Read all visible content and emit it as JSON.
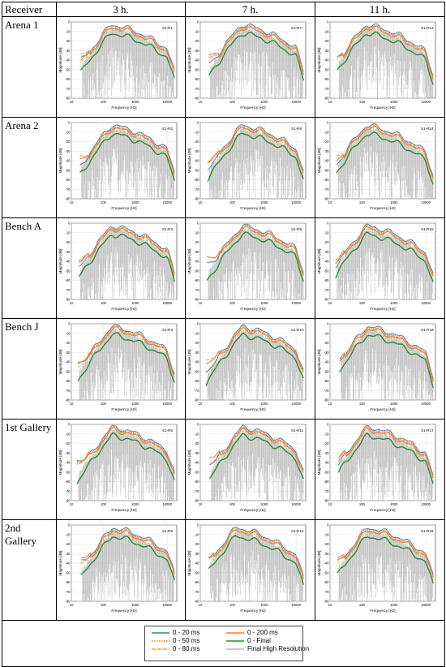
{
  "header": {
    "receiver": "Receiver",
    "t3": "3 h.",
    "t7": "7 h.",
    "t11": "11 h."
  },
  "axis": {
    "xlabel": "Frequency [Hz]",
    "ylabel": "Magnitude [dB]",
    "xticks": [
      "10",
      "100",
      "1000",
      "10000"
    ],
    "yticks": [
      "0",
      "-10",
      "-20",
      "-30",
      "-40",
      "-50",
      "-60",
      "-70",
      "-80"
    ]
  },
  "rows": [
    {
      "label": "Arena 1",
      "plots": [
        "S1-R1",
        "S1-R7",
        "S1-R13"
      ]
    },
    {
      "label": "Arena 2",
      "plots": [
        "S1-R2",
        "S1-R8",
        "S1-R14"
      ]
    },
    {
      "label": "Bench A",
      "plots": [
        "S1-R3",
        "S1-R9",
        "S1-R15"
      ]
    },
    {
      "label": "Bench J",
      "plots": [
        "S1-R4",
        "S1-R10",
        "S1-R16"
      ]
    },
    {
      "label": "1st Gallery",
      "plots": [
        "S1-R5",
        "S1-R11",
        "S1-R17"
      ]
    },
    {
      "label": "2nd Gallery",
      "plots": [
        "S1-R6",
        "S1-R12",
        "S1-R18"
      ]
    }
  ],
  "legend": [
    {
      "label": "0 - 20 ms",
      "color": "#4472c4",
      "style": "solid"
    },
    {
      "label": "0 - 200 ms",
      "color": "#ed7d31",
      "style": "solid"
    },
    {
      "label": "0 - 50 ms",
      "color": "#e08a00",
      "style": "dotted"
    },
    {
      "label": "0 - Final",
      "color": "#2e8b2e",
      "style": "solid"
    },
    {
      "label": "0 - 80 ms",
      "color": "#f0a040",
      "style": "dashed"
    },
    {
      "label": "Final High Resolution",
      "color": "#b8b8b8",
      "style": "solid"
    }
  ]
}
